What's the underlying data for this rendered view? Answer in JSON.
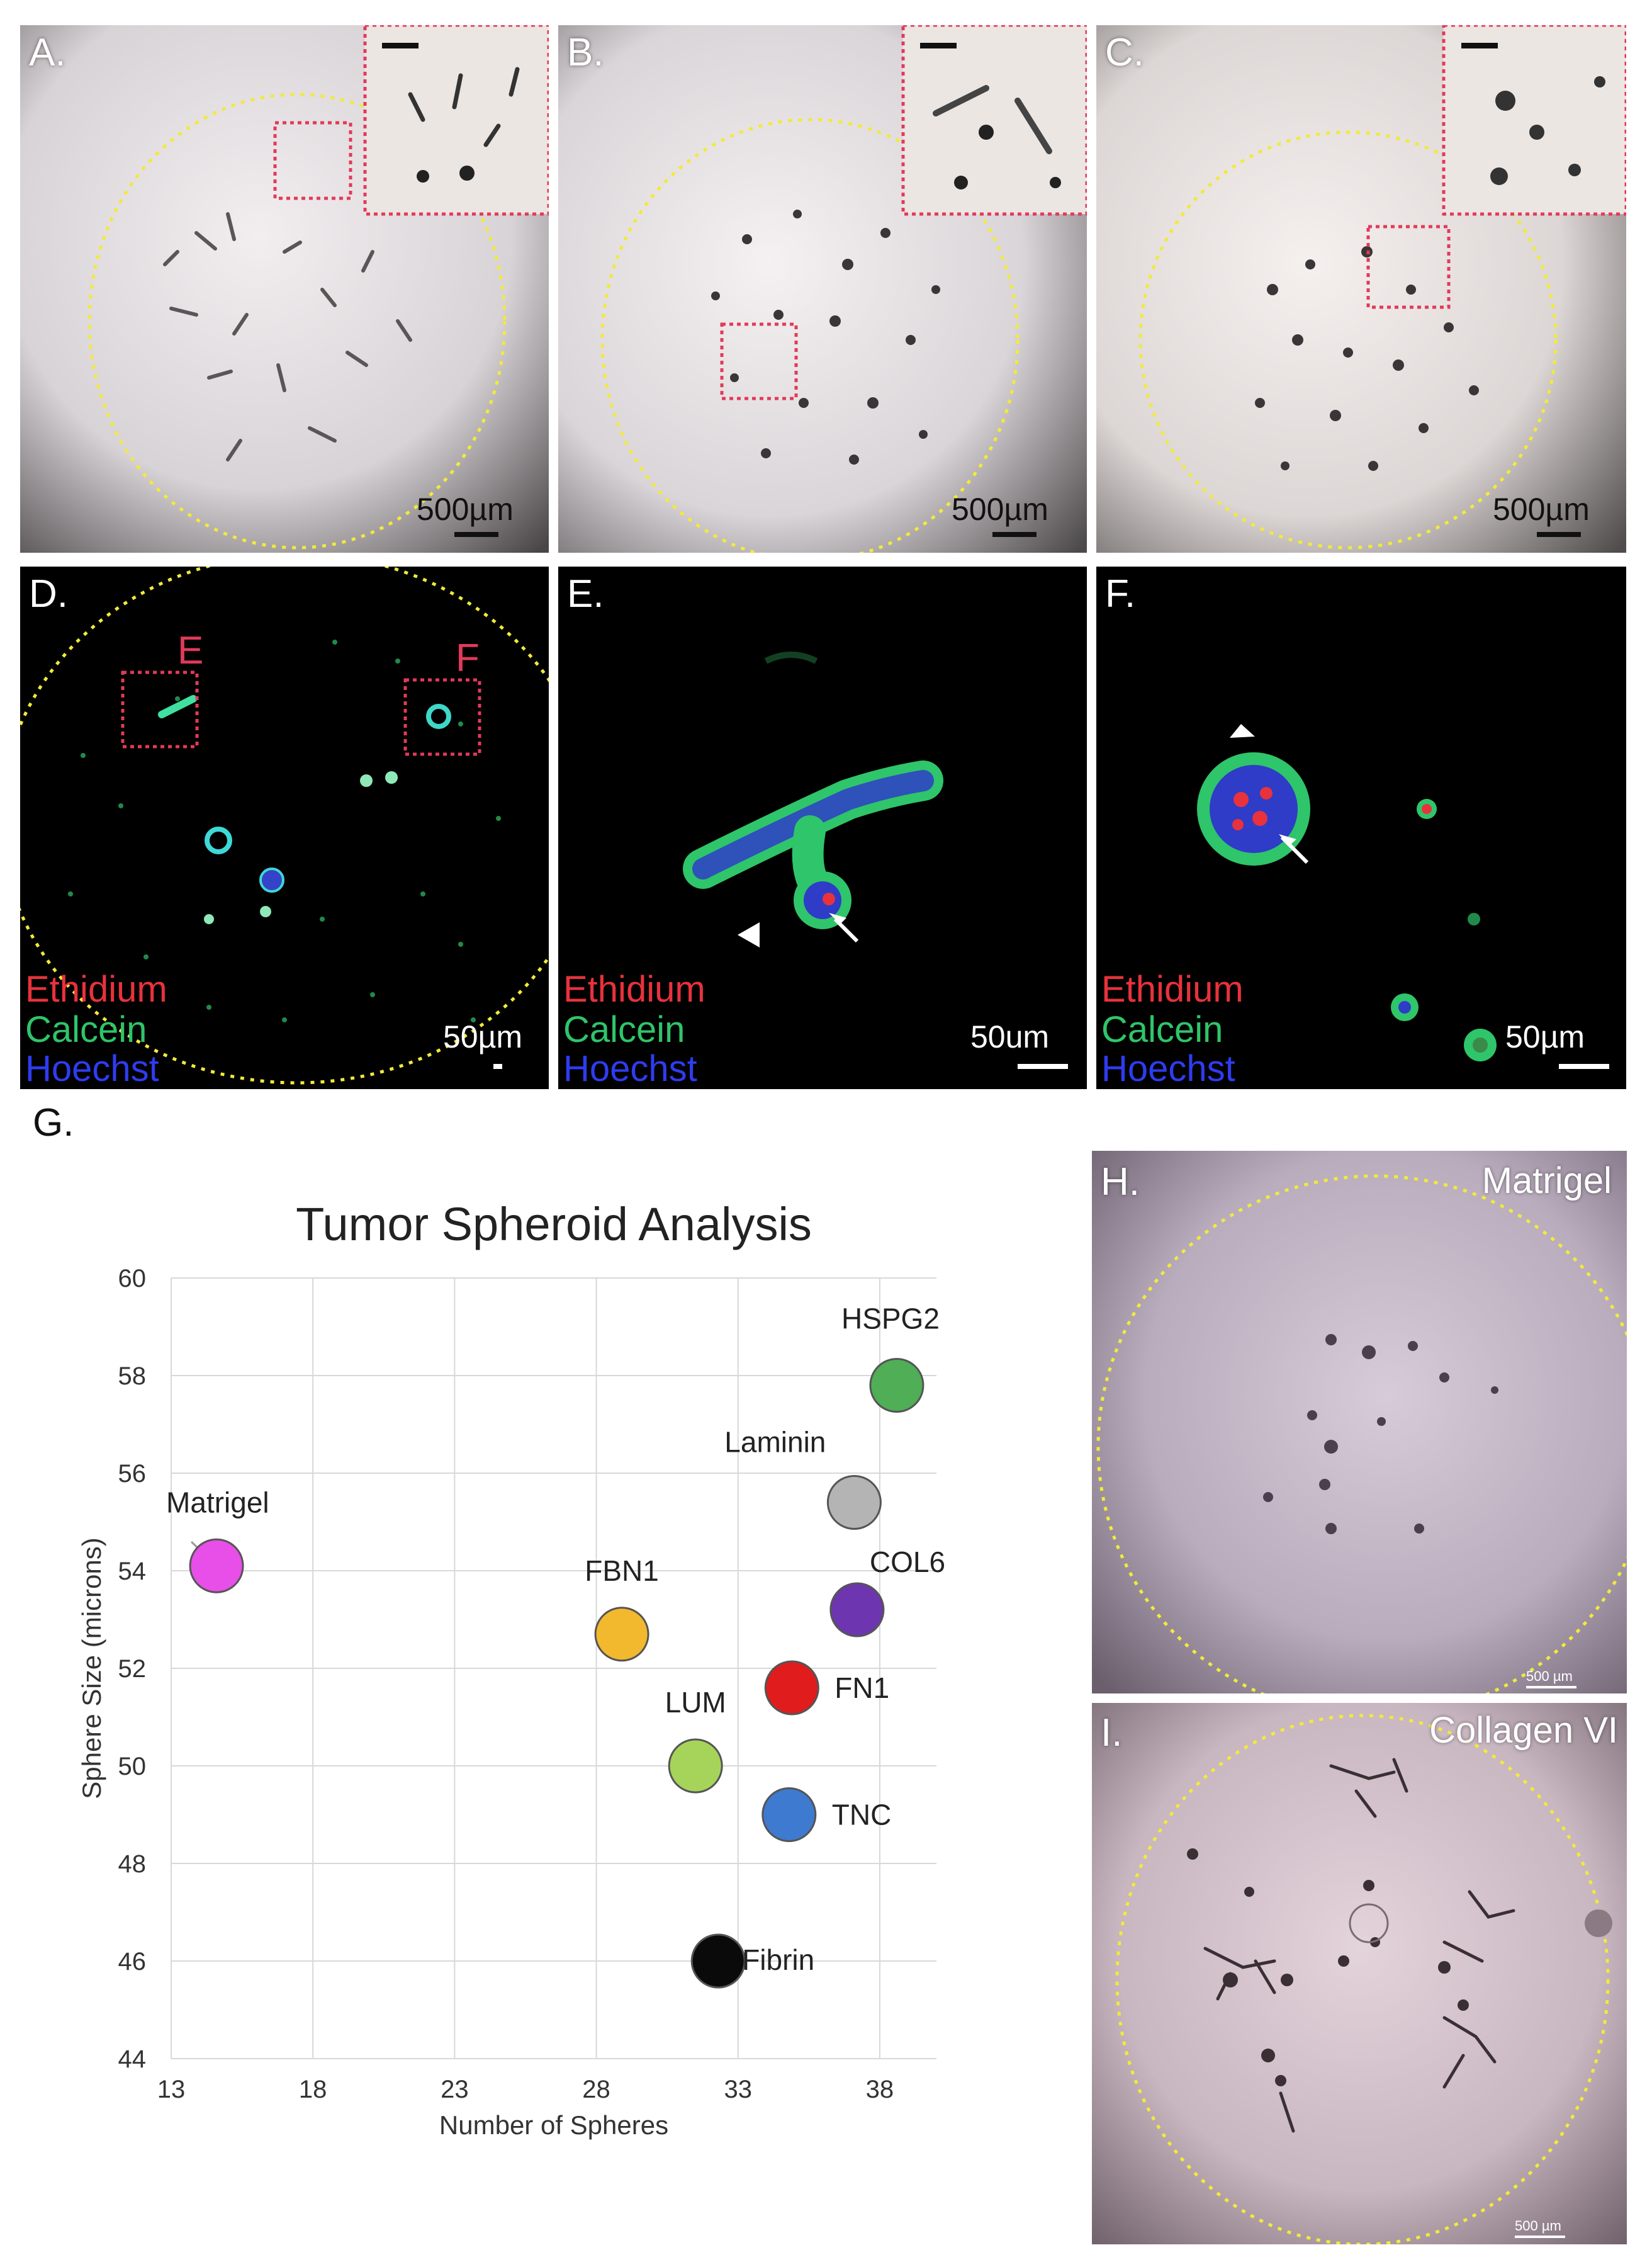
{
  "panels": {
    "A": {
      "label": "A.",
      "scale": "500µm"
    },
    "B": {
      "label": "B.",
      "scale": "500µm"
    },
    "C": {
      "label": "C.",
      "scale": "500µm"
    },
    "D": {
      "label": "D.",
      "scale": "50µm",
      "roi_e": "E",
      "roi_f": "F"
    },
    "E": {
      "label": "E.",
      "scale": "50um"
    },
    "F": {
      "label": "F.",
      "scale": "50µm"
    },
    "H": {
      "label": "H.",
      "title": "Matrigel",
      "scale": "500 µm"
    },
    "I": {
      "label": "I.",
      "title": "Collagen VI",
      "scale": "500 µm"
    }
  },
  "stains": {
    "ethidium": "Ethidium",
    "calcein": "Calcein",
    "hoechst": "Hoechst"
  },
  "colors": {
    "ethidium": "#e8323c",
    "calcein": "#2fc56a",
    "hoechst": "#2e3cf0",
    "roi": "#e23a5a",
    "well_outline": "#f2ea3a"
  },
  "figure_g_label": "G.",
  "chart_data": {
    "type": "scatter",
    "title": "Tumor Spheroid Analysis",
    "xlabel": "Number of Spheres",
    "ylabel": "Sphere Size (microns)",
    "xlim": [
      13,
      40
    ],
    "ylim": [
      44,
      60
    ],
    "xticks": [
      13,
      18,
      23,
      28,
      33,
      38
    ],
    "yticks": [
      44,
      46,
      48,
      50,
      52,
      54,
      56,
      58,
      60
    ],
    "grid": true,
    "points": [
      {
        "label": "Matrigel",
        "x": 14.6,
        "y": 54.1,
        "color": "#e84ee8"
      },
      {
        "label": "FBN1",
        "x": 28.9,
        "y": 52.7,
        "color": "#f2b92e"
      },
      {
        "label": "LUM",
        "x": 31.5,
        "y": 50.0,
        "color": "#a6d45a"
      },
      {
        "label": "Fibrin",
        "x": 32.3,
        "y": 46.0,
        "color": "#0a0a0a"
      },
      {
        "label": "TNC",
        "x": 34.8,
        "y": 49.0,
        "color": "#3d7ad0"
      },
      {
        "label": "FN1",
        "x": 34.9,
        "y": 51.6,
        "color": "#e01c1c"
      },
      {
        "label": "Laminin",
        "x": 37.1,
        "y": 55.4,
        "color": "#b4b4b4"
      },
      {
        "label": "COL6",
        "x": 37.2,
        "y": 53.2,
        "color": "#6e35b0"
      },
      {
        "label": "HSPG2",
        "x": 38.6,
        "y": 57.8,
        "color": "#4fae56"
      }
    ]
  }
}
